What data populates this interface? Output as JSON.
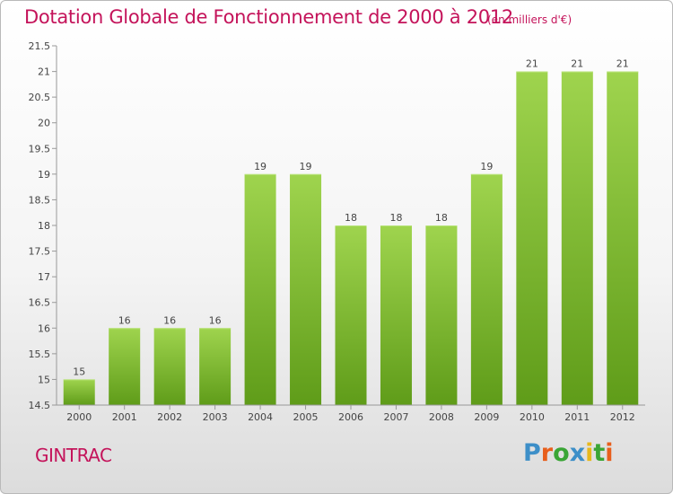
{
  "title": "Dotation Globale de Fonctionnement de 2000 à 2012",
  "subtitle": "(en milliers d'€)",
  "commune": "GINTRAC",
  "logo": {
    "text": "Proxiti",
    "letters": [
      "P",
      "r",
      "o",
      "x",
      "i",
      "t",
      "i"
    ],
    "colors": [
      "#3d8fc8",
      "#e85f1c",
      "#3aa535",
      "#3d8fc8",
      "#e8b81c",
      "#3aa535",
      "#e85f1c"
    ]
  },
  "colors": {
    "title": "#c4135a",
    "bar_top": "#9fd44e",
    "bar_bottom": "#5f9c19",
    "axis": "#999999",
    "grid": "#c8c8c8"
  },
  "chart_data": {
    "type": "bar",
    "title": "Dotation Globale de Fonctionnement de 2000 à 2012",
    "subtitle": "(en milliers d'€)",
    "xlabel": "",
    "ylabel": "",
    "categories": [
      "2000",
      "2001",
      "2002",
      "2003",
      "2004",
      "2005",
      "2006",
      "2007",
      "2008",
      "2009",
      "2010",
      "2011",
      "2012"
    ],
    "values": [
      15,
      16,
      16,
      16,
      19,
      19,
      18,
      18,
      18,
      19,
      21,
      21,
      21
    ],
    "data_labels": [
      "15",
      "16",
      "16",
      "16",
      "19",
      "19",
      "18",
      "18",
      "18",
      "19",
      "21",
      "21",
      "21"
    ],
    "ylim": [
      14.5,
      21.5
    ],
    "yticks": [
      14.5,
      15,
      15.5,
      16,
      16.5,
      17,
      17.5,
      18,
      18.5,
      19,
      19.5,
      20,
      20.5,
      21,
      21.5
    ],
    "ytick_labels": [
      "14.5",
      "15",
      "15.5",
      "16",
      "16.5",
      "17",
      "17.5",
      "18",
      "18.5",
      "19",
      "19.5",
      "20",
      "20.5",
      "21",
      "21.5"
    ],
    "grid": false,
    "legend": "none"
  }
}
